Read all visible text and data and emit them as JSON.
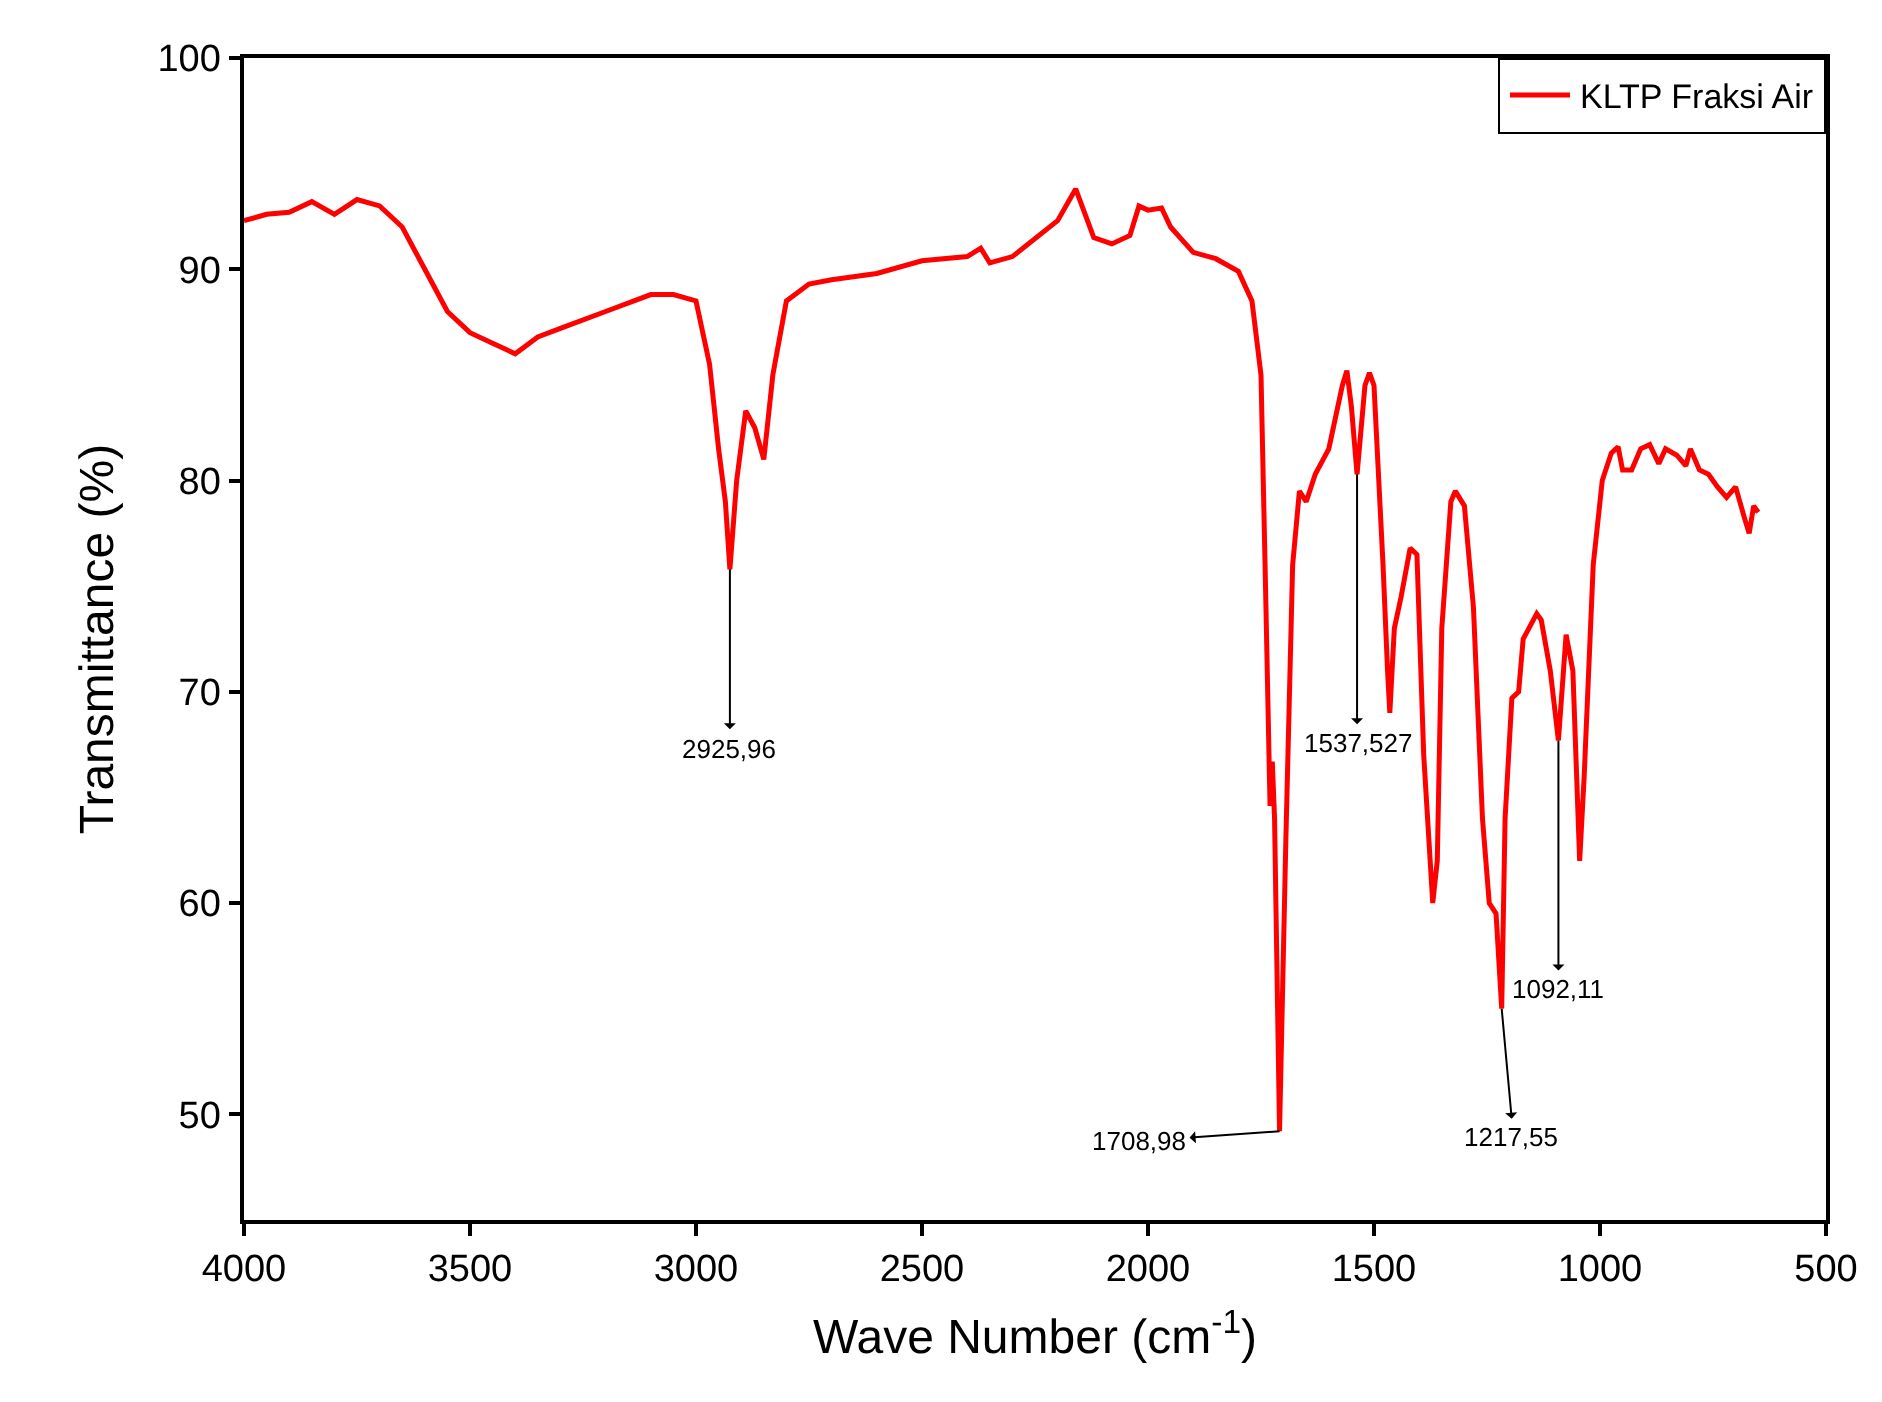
{
  "chart_data": {
    "type": "line",
    "xlabel": "Wave Number (cm$^{-1}$)",
    "ylabel": "Transmittance (%)",
    "xlim": [
      4000,
      500
    ],
    "xticks": [
      4000,
      3500,
      3000,
      2500,
      2000,
      1500,
      1000,
      500
    ],
    "ylim": [
      45,
      100
    ],
    "yticks": [
      50,
      60,
      70,
      80,
      90,
      100
    ],
    "legend": "top right",
    "marker": "none",
    "line_style": "solid",
    "x": [
      4000,
      3950,
      3900,
      3850,
      3800,
      3750,
      3700,
      3650,
      3600,
      3550,
      3500,
      3450,
      3400,
      3350,
      3300,
      3200,
      3100,
      3050,
      3000,
      2970,
      2950,
      2935,
      2925,
      2910,
      2890,
      2870,
      2850,
      2830,
      2800,
      2750,
      2700,
      2600,
      2500,
      2400,
      2370,
      2350,
      2300,
      2200,
      2160,
      2120,
      2080,
      2040,
      2020,
      2000,
      1970,
      1950,
      1900,
      1850,
      1800,
      1770,
      1750,
      1740,
      1730,
      1725,
      1720,
      1709,
      1695,
      1680,
      1665,
      1650,
      1630,
      1600,
      1570,
      1560,
      1550,
      1537.5,
      1520,
      1510,
      1500,
      1480,
      1470,
      1465,
      1455,
      1440,
      1420,
      1405,
      1390,
      1370,
      1360,
      1350,
      1330,
      1320,
      1300,
      1280,
      1260,
      1245,
      1230,
      1217.5,
      1210,
      1195,
      1180,
      1170,
      1140,
      1130,
      1110,
      1092,
      1075,
      1060,
      1045,
      1035,
      1015,
      995,
      975,
      960,
      950,
      930,
      910,
      890,
      870,
      855,
      830,
      810,
      800,
      780,
      760,
      740,
      720,
      700,
      680,
      670,
      660,
      650
    ],
    "series": [
      {
        "name": "KLTP Fraksi Air",
        "color": "#ff0000",
        "values": [
          92.3,
          92.6,
          92.7,
          93.2,
          92.6,
          93.3,
          93.0,
          92.0,
          90.0,
          88.0,
          87.0,
          86.5,
          86.0,
          86.8,
          87.2,
          88.0,
          88.8,
          88.8,
          88.5,
          85.5,
          81.5,
          79,
          75.8,
          80,
          83.3,
          82.5,
          81.0,
          85,
          88.5,
          89.3,
          89.5,
          89.8,
          90.4,
          90.6,
          91.0,
          90.3,
          90.6,
          92.3,
          93.8,
          91.5,
          91.2,
          91.6,
          93.0,
          92.8,
          92.9,
          92.0,
          90.8,
          90.5,
          89.9,
          88.5,
          85,
          75,
          64.6,
          66.7,
          64,
          49.2,
          63,
          76,
          79.5,
          79.0,
          80.3,
          81.5,
          84.5,
          85.2,
          83.5,
          80.3,
          84.5,
          85.1,
          84.5,
          76,
          71,
          69,
          73,
          74.5,
          76.8,
          76.5,
          67,
          60,
          62,
          73,
          79,
          79.5,
          78.8,
          74,
          64,
          60,
          59.5,
          55,
          64,
          69.7,
          70,
          72.5,
          73.7,
          73.4,
          71,
          67.7,
          72.7,
          71,
          62,
          66,
          76,
          80,
          81.3,
          81.6,
          80.5,
          80.5,
          81.5,
          81.7,
          80.8,
          81.5,
          81.2,
          80.7,
          81.5,
          80.5,
          80.3,
          79.7,
          79.2,
          79.7,
          78.2,
          77.5,
          78.8,
          78.5
        ]
      }
    ],
    "annotations": [
      {
        "text": "2925,96",
        "x": 2925,
        "y": 75.8
      },
      {
        "text": "1708,98",
        "x": 1709,
        "y": 49.2
      },
      {
        "text": "1537,527",
        "x": 1537.5,
        "y": 80.3
      },
      {
        "text": "1217,55",
        "x": 1217.5,
        "y": 55
      },
      {
        "text": "1092,11",
        "x": 1092,
        "y": 67.7
      }
    ]
  }
}
